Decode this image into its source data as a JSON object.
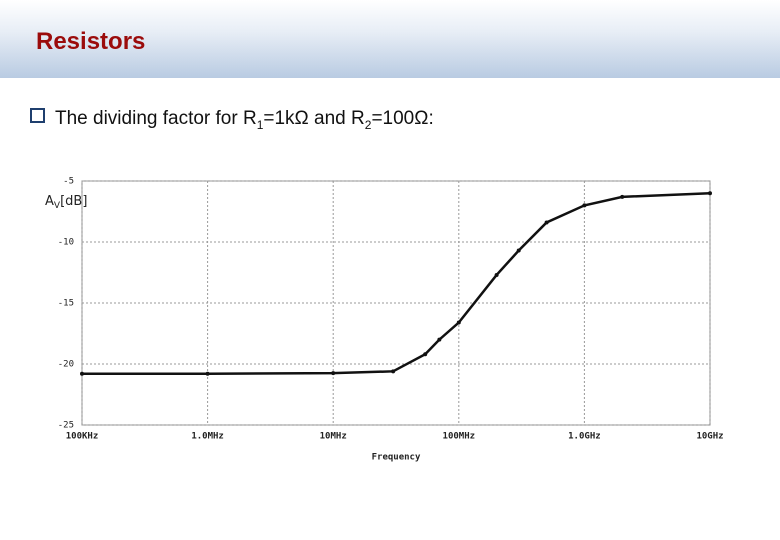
{
  "slide": {
    "title": "Resistors",
    "bullet": [
      "The dividing factor for R",
      "1",
      "=1kΩ and R",
      "2",
      "=100Ω:"
    ]
  },
  "chart_data": {
    "type": "line",
    "ylabel": [
      "A",
      "V",
      "[dB]"
    ],
    "xlabel": "Frequency",
    "x": [
      100000,
      1000000,
      10000000,
      30000000,
      54000000,
      70000000,
      100000000,
      200000000,
      300000000,
      500000000,
      1000000000,
      2000000000,
      10000000000
    ],
    "values": [
      -20.8,
      -20.8,
      -20.75,
      -20.6,
      -19.2,
      -18.0,
      -16.6,
      -12.7,
      -10.7,
      -8.4,
      -7.0,
      -6.3,
      -6.0
    ],
    "color": "#111111",
    "xscale": "log",
    "xlim": [
      100000,
      10000000000
    ],
    "xticks": [
      {
        "value": 100000,
        "label": "100KHz"
      },
      {
        "value": 1000000,
        "label": "1.0MHz"
      },
      {
        "value": 10000000,
        "label": "10MHz"
      },
      {
        "value": 100000000,
        "label": "100MHz"
      },
      {
        "value": 1000000000,
        "label": "1.0GHz"
      },
      {
        "value": 10000000000,
        "label": "10GHz"
      }
    ],
    "ylim": [
      -25,
      -5
    ],
    "yticks": [
      -5,
      -10,
      -15,
      -20,
      -25
    ],
    "grid": true
  }
}
